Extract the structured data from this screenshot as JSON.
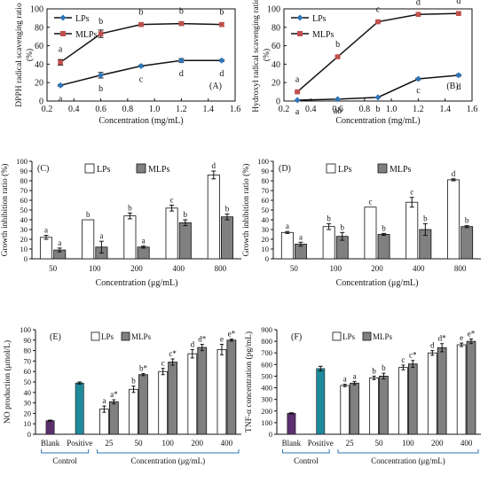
{
  "chart_data": [
    {
      "panel": "(A)",
      "type": "line",
      "ylabel": "DPPH radical scavenging ratio (%)",
      "xlabel": "Concentration (mg/mL)",
      "xlim": [
        0.2,
        1.6
      ],
      "ylim": [
        0,
        100
      ],
      "xticks": [
        "0.2",
        "0.4",
        "0.6",
        "0.8",
        "1.0",
        "1.2",
        "1.4",
        "1.6"
      ],
      "yticks": [
        "0",
        "20",
        "40",
        "60",
        "80",
        "100"
      ],
      "x": [
        0.3,
        0.6,
        0.9,
        1.2,
        1.5
      ],
      "series": [
        {
          "name": "LPs",
          "color": "#2e75b6",
          "marker": "diamond",
          "values": [
            17,
            28,
            38,
            44,
            44
          ],
          "err": [
            1,
            3,
            1,
            2,
            1
          ],
          "letters": [
            "a",
            "b",
            "c",
            "d",
            "d"
          ]
        },
        {
          "name": "MLPs",
          "color": "#c0504d",
          "marker": "square",
          "values": [
            42,
            73,
            83,
            84,
            83
          ],
          "err": [
            3,
            4,
            2,
            2,
            2
          ],
          "letters": [
            "a",
            "b",
            "b",
            "b",
            "b"
          ]
        }
      ],
      "legend": "top-left"
    },
    {
      "panel": "(B)",
      "type": "line",
      "ylabel": "Hydroxyl radical scavenging ratio (%)",
      "xlabel": "Concentration (mg/mL)",
      "xlim": [
        0.2,
        1.6
      ],
      "ylim": [
        0,
        100
      ],
      "xticks": [
        "0.2",
        "0.4",
        "0.6",
        "0.8",
        "1.0",
        "1.2",
        "1.4",
        "1.6"
      ],
      "yticks": [
        "0",
        "20",
        "40",
        "60",
        "80",
        "100"
      ],
      "x": [
        0.3,
        0.6,
        0.9,
        1.2,
        1.5
      ],
      "series": [
        {
          "name": "LPs",
          "color": "#2e75b6",
          "marker": "diamond",
          "values": [
            1,
            2,
            4,
            24,
            28
          ],
          "err": [
            0,
            0,
            0,
            1,
            1
          ],
          "letters": [
            "a",
            "ab",
            "b",
            "c",
            "d"
          ]
        },
        {
          "name": "MLPs",
          "color": "#c0504d",
          "marker": "square",
          "values": [
            10,
            48,
            86,
            94,
            95
          ],
          "err": [
            1,
            1,
            1,
            1,
            1
          ],
          "letters": [
            "a",
            "b",
            "c",
            "d",
            "d"
          ]
        }
      ],
      "legend": "top-left"
    },
    {
      "panel": "(C)",
      "type": "bar",
      "ylabel": "Growth inhibition ratio (%)",
      "xlabel": "Concentration (μg/mL)",
      "ylim": [
        0,
        100
      ],
      "yticks": [
        "0",
        "10",
        "20",
        "30",
        "40",
        "50",
        "60",
        "70",
        "80",
        "90",
        "100"
      ],
      "categories": [
        "50",
        "100",
        "200",
        "400",
        "800"
      ],
      "series": [
        {
          "name": "LPs",
          "color": "#ffffff",
          "values": [
            22,
            40,
            44,
            52,
            86
          ],
          "err": [
            2,
            0,
            3,
            3,
            4
          ],
          "letters": [
            "a",
            "b",
            "b",
            "c",
            "d"
          ]
        },
        {
          "name": "MLPs",
          "color": "#808080",
          "values": [
            9,
            12,
            12,
            37,
            43
          ],
          "err": [
            2,
            6,
            1,
            3,
            3
          ],
          "letters": [
            "a",
            "a",
            "a",
            "b",
            "b"
          ]
        }
      ],
      "legend": "top"
    },
    {
      "panel": "(D)",
      "type": "bar",
      "ylabel": "Growth inhibition ratio (%)",
      "xlabel": "Concentration (μg/mL)",
      "ylim": [
        0,
        100
      ],
      "yticks": [
        "0",
        "10",
        "20",
        "30",
        "40",
        "50",
        "60",
        "70",
        "80",
        "90",
        "100"
      ],
      "categories": [
        "50",
        "100",
        "200",
        "400",
        "800"
      ],
      "series": [
        {
          "name": "LPs",
          "color": "#ffffff",
          "values": [
            27,
            33,
            53,
            58,
            81
          ],
          "err": [
            1,
            3,
            0,
            5,
            1
          ],
          "letters": [
            "a",
            "b",
            "c",
            "c",
            "d"
          ]
        },
        {
          "name": "MLPs",
          "color": "#808080",
          "values": [
            15,
            23,
            25,
            30,
            33
          ],
          "err": [
            2,
            4,
            1,
            6,
            1
          ],
          "letters": [
            "a",
            "b",
            "b",
            "b",
            "b"
          ]
        }
      ],
      "legend": "top"
    },
    {
      "panel": "(E)",
      "type": "bar",
      "ylabel": "NO production (μmol/L)",
      "ylim": [
        0,
        100
      ],
      "yticks": [
        "0",
        "10",
        "20",
        "30",
        "40",
        "50",
        "60",
        "70",
        "80",
        "90",
        "100"
      ],
      "controls": [
        {
          "label": "Blank",
          "value": 13,
          "err": 0.5,
          "color": "#5b2f6e"
        },
        {
          "label": "Positive",
          "value": 49,
          "err": 1,
          "color": "#1f8a9b"
        }
      ],
      "categories": [
        "25",
        "50",
        "100",
        "200",
        "400"
      ],
      "series": [
        {
          "name": "LPs",
          "color": "#ffffff",
          "values": [
            24,
            43,
            60,
            77,
            81
          ],
          "err": [
            3,
            3,
            3,
            4,
            5
          ],
          "letters": [
            "a",
            "b",
            "c",
            "d",
            "e"
          ]
        },
        {
          "name": "MLPs",
          "color": "#808080",
          "values": [
            31,
            57,
            69,
            83,
            90
          ],
          "err": [
            2,
            1,
            3,
            3,
            1
          ],
          "letters": [
            "a*",
            "b*",
            "c*",
            "d*",
            "e*"
          ]
        }
      ],
      "group_labels": {
        "control": "Control",
        "concentration": "Concentration (μg/mL)"
      },
      "legend": "top"
    },
    {
      "panel": "(F)",
      "type": "bar",
      "ylabel": "TNF-α concentration (pg/mL)",
      "ylim": [
        0,
        900
      ],
      "yticks": [
        "0",
        "100",
        "200",
        "300",
        "400",
        "500",
        "600",
        "700",
        "800",
        "900"
      ],
      "controls": [
        {
          "label": "Blank",
          "value": 180,
          "err": 5,
          "color": "#5b2f6e"
        },
        {
          "label": "Positive",
          "value": 565,
          "err": 20,
          "color": "#1f8a9b"
        }
      ],
      "categories": [
        "25",
        "50",
        "100",
        "200",
        "400"
      ],
      "series": [
        {
          "name": "LPs",
          "color": "#ffffff",
          "values": [
            420,
            485,
            575,
            700,
            770
          ],
          "err": [
            10,
            15,
            20,
            20,
            15
          ],
          "letters": [
            "a",
            "b",
            "c",
            "d",
            "e"
          ]
        },
        {
          "name": "MLPs",
          "color": "#808080",
          "values": [
            440,
            500,
            605,
            745,
            800
          ],
          "err": [
            15,
            25,
            30,
            35,
            20
          ],
          "letters": [
            "a",
            "b",
            "c*",
            "d*",
            "e*"
          ]
        }
      ],
      "group_labels": {
        "control": "Control",
        "concentration": "Concentration (μg/mL)"
      },
      "legend": "top"
    }
  ]
}
